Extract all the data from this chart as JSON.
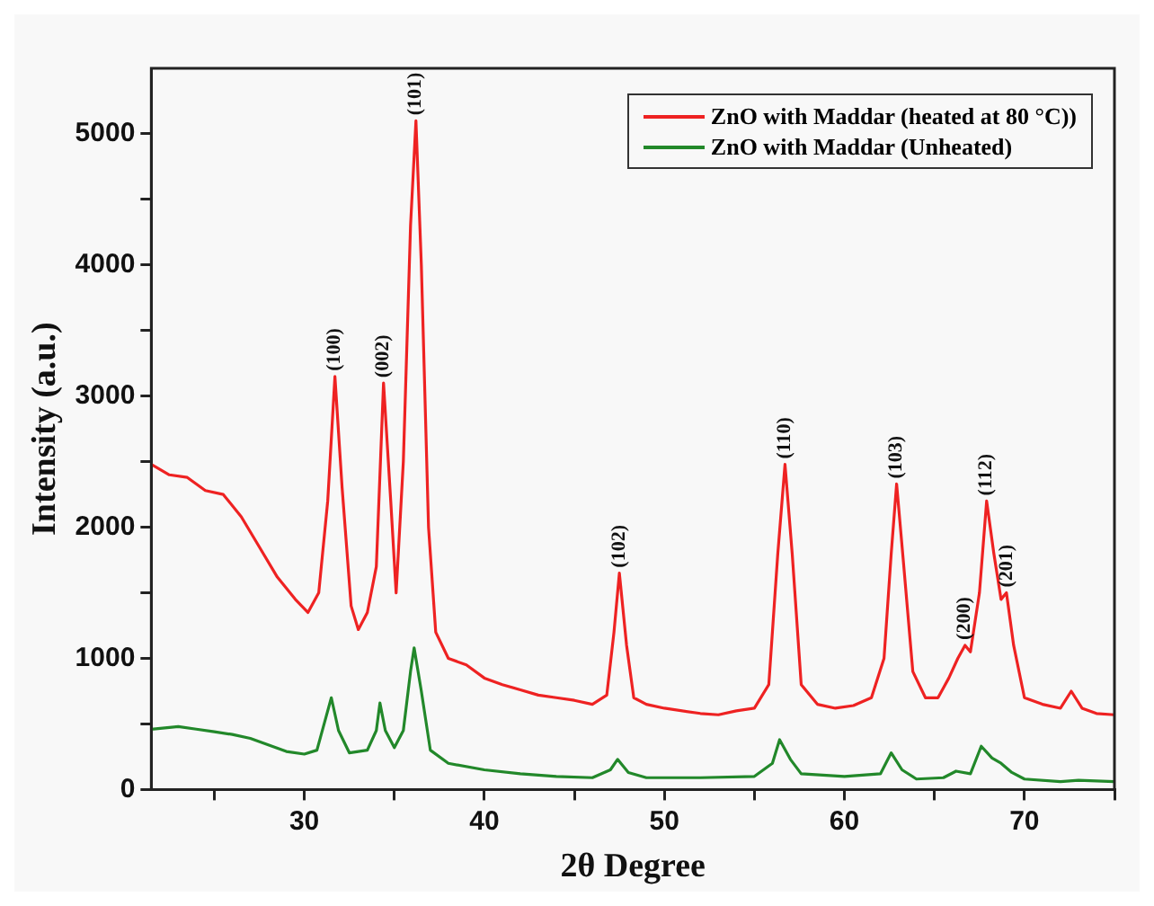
{
  "chart_data": {
    "type": "line",
    "xlabel": "2θ Degree",
    "ylabel": "Intensity (a.u.)",
    "xlim": [
      21.5,
      75
    ],
    "ylim": [
      0,
      5500
    ],
    "xticks": [
      {
        "value": 25,
        "label": null
      },
      30,
      {
        "value": 35,
        "label": null
      },
      40,
      {
        "value": 45,
        "label": null
      },
      50,
      {
        "value": 55,
        "label": null
      },
      60,
      {
        "value": 65,
        "label": null
      },
      70,
      {
        "value": 75,
        "label": null
      }
    ],
    "yticks": [
      0,
      {
        "value": 500,
        "label": null
      },
      1000,
      {
        "value": 1500,
        "label": null
      },
      2000,
      {
        "value": 2500,
        "label": null
      },
      3000,
      {
        "value": 3500,
        "label": null
      },
      4000,
      {
        "value": 4500,
        "label": null
      },
      5000
    ],
    "grid": false,
    "legend": "top right",
    "marker": "none",
    "line_style": "solid",
    "series": [
      {
        "name": "ZnO with Maddar (heated at 80 °C))",
        "color": "#ee2222",
        "x": [
          21.5,
          22.5,
          23.5,
          24.5,
          25.5,
          26.5,
          27.5,
          28.5,
          29.5,
          30.2,
          30.8,
          31.3,
          31.7,
          32.1,
          32.6,
          33,
          33.5,
          34,
          34.4,
          34.8,
          35.1,
          35.5,
          35.9,
          36.2,
          36.5,
          36.9,
          37.3,
          38,
          39,
          40,
          41,
          42,
          43,
          44,
          45,
          46,
          46.8,
          47.2,
          47.5,
          47.9,
          48.3,
          49,
          50,
          52,
          53,
          54,
          55,
          55.8,
          56.3,
          56.7,
          57.1,
          57.6,
          58.5,
          59.5,
          60.5,
          61.5,
          62.2,
          62.6,
          62.9,
          63.3,
          63.8,
          64.5,
          65.2,
          65.8,
          66.3,
          66.7,
          67,
          67.5,
          67.9,
          68.3,
          68.7,
          69,
          69.4,
          70,
          71,
          72,
          72.6,
          73.2,
          74,
          75
        ],
        "values": [
          2480,
          2400,
          2380,
          2280,
          2250,
          2080,
          1850,
          1620,
          1450,
          1350,
          1500,
          2200,
          3150,
          2300,
          1400,
          1220,
          1350,
          1700,
          3100,
          2200,
          1500,
          2500,
          4300,
          5100,
          4000,
          2000,
          1200,
          1000,
          950,
          850,
          800,
          760,
          720,
          700,
          680,
          650,
          720,
          1200,
          1650,
          1100,
          700,
          650,
          620,
          580,
          570,
          600,
          620,
          800,
          1800,
          2480,
          1800,
          800,
          650,
          620,
          640,
          700,
          1000,
          1800,
          2330,
          1700,
          900,
          700,
          700,
          850,
          1000,
          1100,
          1050,
          1500,
          2200,
          1800,
          1450,
          1500,
          1100,
          700,
          650,
          620,
          750,
          620,
          580,
          570
        ]
      },
      {
        "name": "ZnO with Maddar (Unheated)",
        "color": "#22882a",
        "x": [
          21.5,
          23,
          24,
          25,
          26,
          27,
          28,
          29,
          30,
          30.7,
          31.2,
          31.5,
          31.9,
          32.5,
          33.5,
          34,
          34.2,
          34.5,
          35,
          35.5,
          35.9,
          36.1,
          36.5,
          37,
          38,
          40,
          42,
          44,
          46,
          47,
          47.4,
          48,
          49,
          52,
          55,
          56,
          56.4,
          57,
          57.6,
          60,
          62,
          62.6,
          63.2,
          64,
          65.5,
          66.2,
          67,
          67.6,
          68.2,
          68.7,
          69.3,
          70,
          72,
          73,
          75
        ],
        "values": [
          460,
          480,
          460,
          440,
          420,
          390,
          340,
          290,
          270,
          300,
          550,
          700,
          450,
          280,
          300,
          450,
          660,
          450,
          320,
          450,
          900,
          1080,
          750,
          300,
          200,
          150,
          120,
          100,
          90,
          150,
          230,
          130,
          90,
          90,
          100,
          200,
          380,
          230,
          120,
          100,
          120,
          280,
          150,
          80,
          90,
          140,
          120,
          330,
          240,
          200,
          130,
          80,
          60,
          70,
          60
        ]
      }
    ],
    "annotations": [
      {
        "text": "(100)",
        "x": 31.7,
        "y": 3150
      },
      {
        "text": "(002)",
        "x": 34.4,
        "y": 3100
      },
      {
        "text": "(101)",
        "x": 36.2,
        "y": 5100
      },
      {
        "text": "(102)",
        "x": 47.5,
        "y": 1650
      },
      {
        "text": "(110)",
        "x": 56.7,
        "y": 2480
      },
      {
        "text": "(103)",
        "x": 62.9,
        "y": 2330
      },
      {
        "text": "(200)",
        "x": 66.7,
        "y": 1100
      },
      {
        "text": "(112)",
        "x": 67.9,
        "y": 2200
      },
      {
        "text": "(201)",
        "x": 69.0,
        "y": 1500
      }
    ]
  }
}
